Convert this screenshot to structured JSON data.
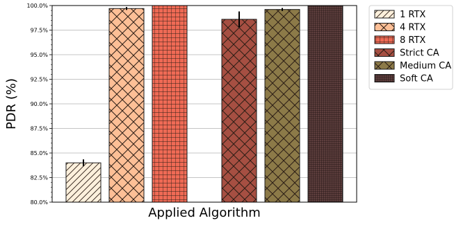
{
  "chart_data": {
    "type": "bar",
    "xlabel": "Applied Algorithm",
    "ylabel": "PDR (%)",
    "ylim": [
      80.0,
      100.0
    ],
    "yticks": [
      "80.0%",
      "82.5%",
      "85.0%",
      "87.5%",
      "90.0%",
      "92.5%",
      "95.0%",
      "97.5%",
      "100.0%"
    ],
    "grid": true,
    "legend_position": "outside-top-right",
    "series": [
      {
        "name": "1 RTX",
        "value": 84.0,
        "error": 0.35,
        "color": "#fdf0dc",
        "hatch": "diagonal"
      },
      {
        "name": "4 RTX",
        "value": 99.7,
        "error": 0.15,
        "color": "#fdbf96",
        "hatch": "crosshatch-diagonal"
      },
      {
        "name": "8 RTX",
        "value": 100.0,
        "error": 0.0,
        "color": "#ef6a55",
        "hatch": "grid"
      },
      {
        "name": "Strict CA",
        "value": 98.6,
        "error": 0.8,
        "color": "#a64f42",
        "hatch": "crosshatch-diagonal"
      },
      {
        "name": "Medium CA",
        "value": 99.6,
        "error": 0.15,
        "color": "#8c7a48",
        "hatch": "crosshatch-diagonal"
      },
      {
        "name": "Soft CA",
        "value": 100.0,
        "error": 0.0,
        "color": "#5e3f3e",
        "hatch": "fine-grid"
      }
    ]
  }
}
